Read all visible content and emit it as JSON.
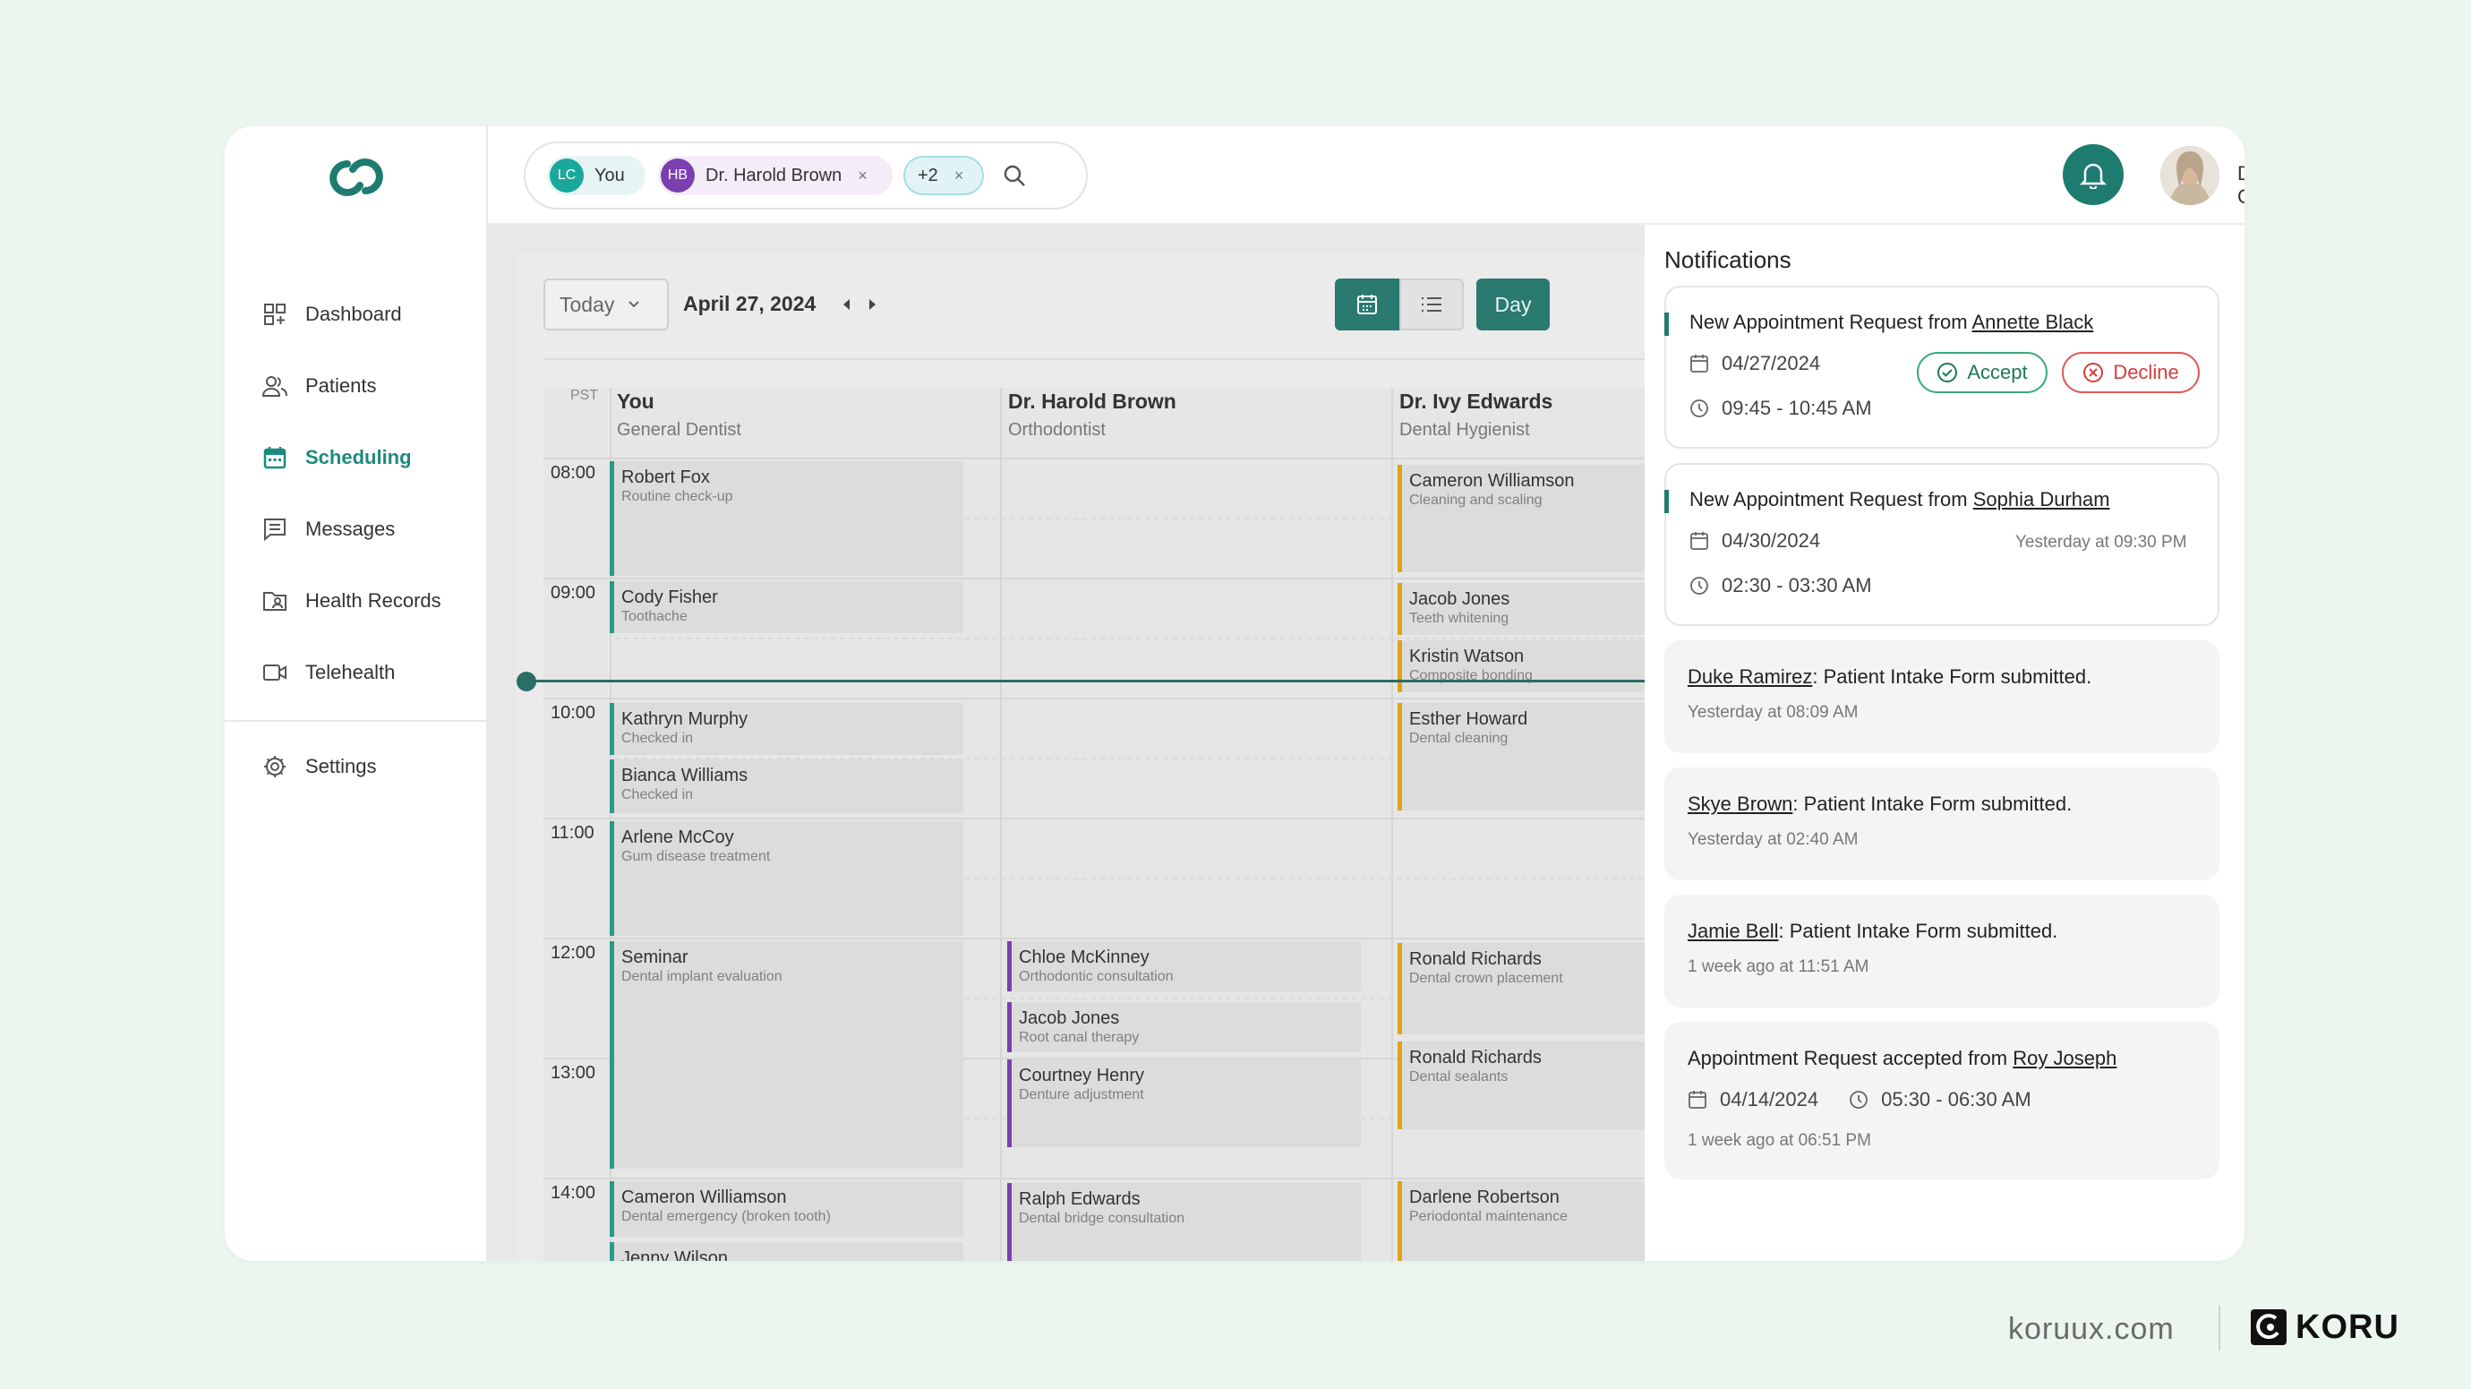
{
  "sidebar": {
    "items": [
      {
        "label": "Dashboard",
        "icon": "dashboard-icon"
      },
      {
        "label": "Patients",
        "icon": "patients-icon"
      },
      {
        "label": "Scheduling",
        "icon": "calendar-icon",
        "active": true
      },
      {
        "label": "Messages",
        "icon": "messages-icon"
      },
      {
        "label": "Health Records",
        "icon": "folder-user-icon"
      },
      {
        "label": "Telehealth",
        "icon": "video-icon"
      }
    ],
    "settings_label": "Settings"
  },
  "header": {
    "chips": [
      {
        "initials": "LC",
        "label": "You",
        "color": "#1aa89a"
      },
      {
        "initials": "HB",
        "label": "Dr. Harold Brown",
        "color": "#7b3fb0"
      },
      {
        "label": "+2"
      }
    ],
    "remove_glyph": "×",
    "user_name": "Dr. Luis Carolyn"
  },
  "calendar": {
    "today_label": "Today",
    "date": "April 27, 2024",
    "view_label": "Day",
    "timezone": "PST",
    "columns": [
      {
        "name": "You",
        "role": "General Dentist"
      },
      {
        "name": "Dr. Harold Brown",
        "role": "Orthodontist"
      },
      {
        "name": "Dr. Ivy Edwards",
        "role": "Dental Hygienist"
      }
    ],
    "times": [
      "08:00",
      "09:00",
      "10:00",
      "11:00",
      "12:00",
      "13:00",
      "14:00"
    ],
    "events": [
      {
        "title": "Robert Fox",
        "sub": "Routine check-up"
      },
      {
        "title": "Cody Fisher",
        "sub": "Toothache"
      },
      {
        "title": "Kathryn Murphy",
        "sub": "Checked in"
      },
      {
        "title": "Bianca Williams",
        "sub": "Checked in"
      },
      {
        "title": "Arlene McCoy",
        "sub": "Gum disease treatment"
      },
      {
        "title": "Seminar",
        "sub": "Dental implant evaluation"
      },
      {
        "title": "Cameron Williamson",
        "sub": "Dental emergency (broken tooth)"
      },
      {
        "title": "Jenny Wilson",
        "sub": ""
      },
      {
        "title": "Chloe McKinney",
        "sub": "Orthodontic consultation"
      },
      {
        "title": "Jacob Jones",
        "sub": "Root canal therapy"
      },
      {
        "title": "Courtney Henry",
        "sub": "Denture adjustment"
      },
      {
        "title": "Ralph Edwards",
        "sub": "Dental bridge consultation"
      },
      {
        "title": "Cameron Williamson",
        "sub": "Cleaning and scaling"
      },
      {
        "title": "Jacob Jones",
        "sub": "Teeth whitening"
      },
      {
        "title": "Kristin Watson",
        "sub": "Composite bonding"
      },
      {
        "title": "Esther Howard",
        "sub": "Dental cleaning"
      },
      {
        "title": "Ronald Richards",
        "sub": "Dental crown placement"
      },
      {
        "title": "Ronald Richards",
        "sub": "Dental sealants"
      },
      {
        "title": "Darlene Robertson",
        "sub": "Periodontal maintenance"
      }
    ]
  },
  "notifications": {
    "title": "Notifications",
    "items": [
      {
        "prefix": "New Appointment Request from ",
        "name": "Annette Black",
        "date": "04/27/2024",
        "time": "09:45 - 10:45 AM",
        "accept": "Accept",
        "decline": "Decline"
      },
      {
        "prefix": "New Appointment Request from ",
        "name": "Sophia Durham",
        "date": "04/30/2024",
        "time": "02:30 - 03:30 AM",
        "stamp": "Yesterday at 09:30 PM"
      },
      {
        "name": "Duke Ramirez",
        "text": ": Patient Intake Form submitted.",
        "stamp": "Yesterday at 08:09 AM"
      },
      {
        "name": "Skye Brown",
        "text": ": Patient Intake Form submitted.",
        "stamp": "Yesterday at 02:40 AM"
      },
      {
        "name": "Jamie Bell",
        "text": ": Patient Intake Form submitted.",
        "stamp": "1 week ago at 11:51 AM"
      },
      {
        "prefix": "Appointment Request accepted from ",
        "name": "Roy Joseph",
        "date": "04/14/2024",
        "time": "05:30 - 06:30 AM",
        "stamp": "1 week ago at 06:51 PM"
      }
    ]
  },
  "brand": {
    "url": "koruux.com",
    "name": "KORU"
  },
  "colors": {
    "accent": "#1e7b70",
    "you_event": "#2a9a8a",
    "harold_event": "#7b3fb0",
    "ivy_event": "#e0a312"
  }
}
